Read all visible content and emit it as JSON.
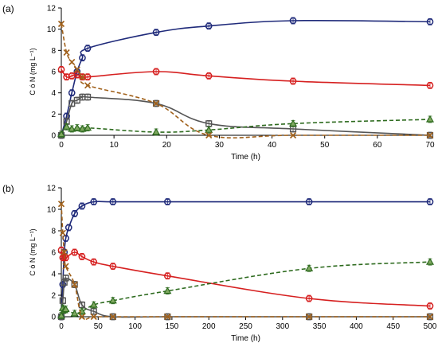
{
  "chart_data": [
    {
      "type": "line",
      "panel_label": "(a)",
      "xlabel": "Time (h)",
      "ylabel": "C ó N (mg L⁻¹)",
      "xlim": [
        0,
        70
      ],
      "ylim": [
        0,
        12
      ],
      "x_ticks": [
        0,
        10,
        20,
        30,
        40,
        50,
        60,
        70
      ],
      "y_ticks": [
        0,
        2,
        4,
        6,
        8,
        10,
        12
      ],
      "grid": false,
      "legend": "none",
      "series": [
        {
          "marker": "circle",
          "color": "#1f2a7a",
          "line": "solid",
          "errorbars": true,
          "x": [
            0,
            1,
            2,
            3,
            4,
            5,
            18,
            28,
            44,
            70
          ],
          "y": [
            0.0,
            1.8,
            4.0,
            6.0,
            7.3,
            8.2,
            9.7,
            10.3,
            10.8,
            10.7
          ]
        },
        {
          "marker": "circle",
          "color": "#d62020",
          "line": "solid",
          "errorbars": true,
          "x": [
            0,
            1,
            2,
            3,
            4,
            5,
            18,
            28,
            44,
            70
          ],
          "y": [
            6.2,
            5.5,
            5.6,
            5.7,
            5.5,
            5.5,
            6.0,
            5.6,
            5.1,
            4.7
          ]
        },
        {
          "marker": "square",
          "color": "#555555",
          "line": "solid",
          "errorbars": true,
          "x": [
            0,
            1,
            2,
            3,
            4,
            5,
            18,
            28,
            44,
            70
          ],
          "y": [
            0.0,
            1.3,
            3.0,
            3.3,
            3.6,
            3.6,
            3.0,
            1.1,
            0.6,
            0.0
          ]
        },
        {
          "marker": "triangle",
          "color": "#2e6b1f",
          "line": "dashed",
          "errorbars": true,
          "x": [
            0,
            1,
            2,
            3,
            4,
            5,
            18,
            28,
            44,
            70
          ],
          "y": [
            0.1,
            0.8,
            0.6,
            0.7,
            0.6,
            0.7,
            0.3,
            0.5,
            1.1,
            1.5
          ]
        },
        {
          "marker": "x",
          "color": "#a0601a",
          "line": "dashed",
          "errorbars": false,
          "x": [
            0,
            1,
            2,
            3,
            4,
            5,
            18,
            28,
            44,
            70
          ],
          "y": [
            10.5,
            7.8,
            6.9,
            6.2,
            5.5,
            4.7,
            3.0,
            0.0,
            0.0,
            0.0
          ]
        }
      ]
    },
    {
      "type": "line",
      "panel_label": "(b)",
      "xlabel": "Time (h)",
      "ylabel": "C ó N (mg L⁻¹)",
      "xlim": [
        0,
        500
      ],
      "ylim": [
        0,
        12
      ],
      "x_ticks": [
        0,
        50,
        100,
        150,
        200,
        250,
        300,
        350,
        400,
        450,
        500
      ],
      "y_ticks": [
        0,
        2,
        4,
        6,
        8,
        10,
        12
      ],
      "grid": false,
      "legend": "none",
      "series": [
        {
          "marker": "circle",
          "color": "#1f2a7a",
          "line": "solid",
          "errorbars": true,
          "x": [
            0,
            2,
            4,
            6,
            10,
            18,
            28,
            44,
            70,
            144,
            336,
            500
          ],
          "y": [
            0.0,
            3.0,
            6.0,
            7.3,
            8.3,
            9.6,
            10.3,
            10.7,
            10.7,
            10.7,
            10.7,
            10.7
          ]
        },
        {
          "marker": "circle",
          "color": "#d62020",
          "line": "solid",
          "errorbars": true,
          "x": [
            0,
            2,
            4,
            6,
            18,
            28,
            44,
            70,
            144,
            336,
            500
          ],
          "y": [
            6.2,
            5.5,
            5.6,
            5.5,
            6.0,
            5.6,
            5.1,
            4.7,
            3.8,
            1.7,
            1.0
          ]
        },
        {
          "marker": "square",
          "color": "#555555",
          "line": "solid",
          "errorbars": true,
          "x": [
            0,
            2,
            4,
            6,
            18,
            28,
            44,
            70,
            144,
            336,
            500
          ],
          "y": [
            0.0,
            1.5,
            3.2,
            3.6,
            3.0,
            1.1,
            0.5,
            0.0,
            0.0,
            0.0,
            0.0
          ]
        },
        {
          "marker": "triangle",
          "color": "#2e6b1f",
          "line": "dashed",
          "errorbars": true,
          "x": [
            0,
            2,
            4,
            6,
            18,
            28,
            44,
            70,
            144,
            336,
            500
          ],
          "y": [
            0.1,
            0.8,
            0.6,
            0.7,
            0.3,
            0.5,
            1.1,
            1.5,
            2.4,
            4.5,
            5.1
          ]
        },
        {
          "marker": "x",
          "color": "#a0601a",
          "line": "dashed",
          "errorbars": false,
          "x": [
            0,
            2,
            4,
            6,
            18,
            28,
            44,
            70,
            144,
            336,
            500
          ],
          "y": [
            10.5,
            7.8,
            6.0,
            4.7,
            3.0,
            0.0,
            0.0,
            0.0,
            0.0,
            0.0,
            0.0
          ]
        }
      ]
    }
  ]
}
